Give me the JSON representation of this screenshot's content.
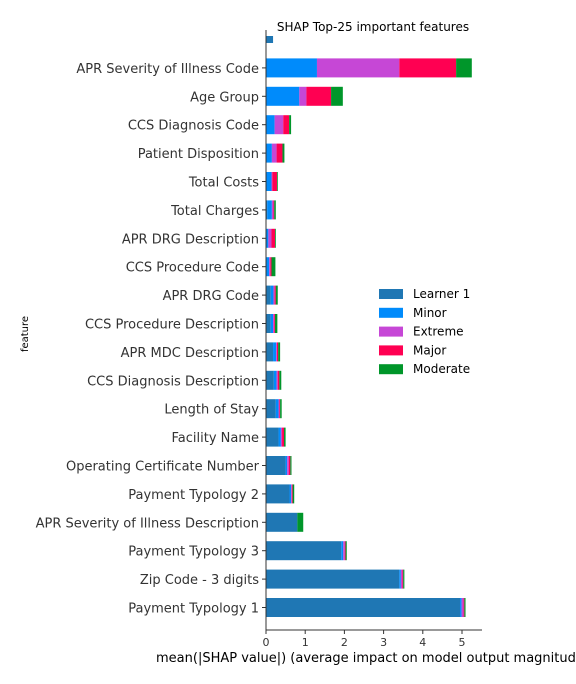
{
  "chart_data": {
    "type": "bar",
    "orientation": "horizontal",
    "stacked": true,
    "title": "SHAP Top-25 important features",
    "xlabel": "mean(|SHAP value|) (average impact on model output magnitude)",
    "ylabel": "feature",
    "xlim": [
      0,
      5.5
    ],
    "xticks": [
      0,
      1,
      2,
      3,
      4,
      5
    ],
    "grid": false,
    "legend_position": "right",
    "categories": [
      "",
      "APR Severity of Illness Code",
      "Age Group",
      "CCS Diagnosis Code",
      "Patient Disposition",
      "Total Costs",
      "Total Charges",
      "APR DRG Description",
      "CCS Procedure Code",
      "APR DRG Code",
      "CCS Procedure Description",
      "APR MDC Description",
      "CCS Diagnosis Description",
      "Length of Stay",
      "Facility Name",
      "Operating Certificate Number",
      "Payment Typology 2",
      "APR Severity of Illness Description",
      "Payment Typology 3",
      "Zip Code - 3 digits",
      "Payment Typology 1"
    ],
    "series": [
      {
        "name": "Learner 1",
        "color": "#1f77b4",
        "values": [
          0.18,
          0,
          0,
          0,
          0,
          0,
          0.03,
          0,
          0,
          0.12,
          0.12,
          0.18,
          0.2,
          0.25,
          0.32,
          0.5,
          0.6,
          0.8,
          1.92,
          3.4,
          4.95
        ]
      },
      {
        "name": "Minor",
        "color": "#008bfb",
        "values": [
          0,
          1.3,
          0.85,
          0.22,
          0.15,
          0.14,
          0.12,
          0.06,
          0.08,
          0.07,
          0.06,
          0.08,
          0.07,
          0.07,
          0.06,
          0.04,
          0.04,
          0,
          0.05,
          0.04,
          0.04
        ]
      },
      {
        "name": "Extreme",
        "color": "#c647d6",
        "values": [
          0,
          2.1,
          0.18,
          0.22,
          0.12,
          0.02,
          0.04,
          0.08,
          0.03,
          0.03,
          0.03,
          0.02,
          0.03,
          0.02,
          0.03,
          0.04,
          0.02,
          0,
          0.04,
          0.04,
          0.05
        ]
      },
      {
        "name": "Major",
        "color": "#ff0052",
        "values": [
          0,
          1.45,
          0.63,
          0.15,
          0.15,
          0.12,
          0.02,
          0.09,
          0.03,
          0.03,
          0.02,
          0.03,
          0.04,
          0.02,
          0.05,
          0.04,
          0.02,
          0,
          0.02,
          0.02,
          0.02
        ]
      },
      {
        "name": "Moderate",
        "color": "#00962a",
        "values": [
          0,
          0.4,
          0.3,
          0.05,
          0.05,
          0.02,
          0.04,
          0.02,
          0.1,
          0.05,
          0.06,
          0.05,
          0.05,
          0.04,
          0.04,
          0.03,
          0.04,
          0.15,
          0.03,
          0.03,
          0.03
        ]
      }
    ]
  }
}
